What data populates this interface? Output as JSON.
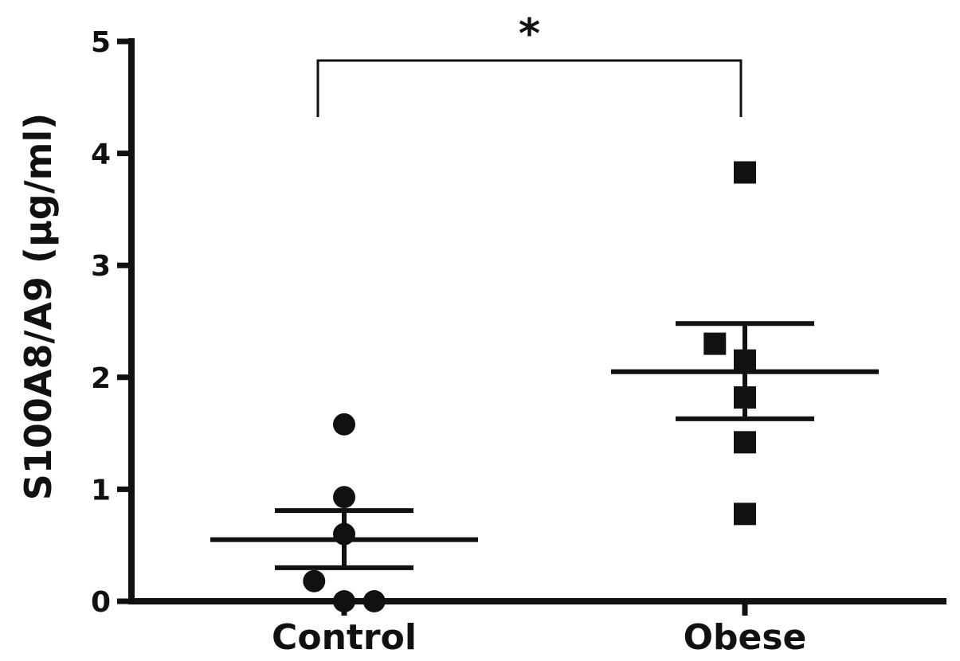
{
  "chart_data": {
    "type": "scatter",
    "title": "",
    "xlabel": "",
    "ylabel": "S100A8/A9 (µg/ml)",
    "ylim": [
      0,
      5
    ],
    "yticks": [
      0,
      1,
      2,
      3,
      4,
      5
    ],
    "ytick_labels": [
      "0",
      "1",
      "2",
      "3",
      "4",
      "5"
    ],
    "categories": [
      "Control",
      "Obese"
    ],
    "grid": false,
    "legend": "none",
    "series": [
      {
        "category": "Control",
        "marker": "circle",
        "color": "#111111",
        "points": [
          {
            "offset": 0.0,
            "value": 1.58
          },
          {
            "offset": 0.0,
            "value": 0.93
          },
          {
            "offset": 0.0,
            "value": 0.6
          },
          {
            "offset": -0.075,
            "value": 0.18
          },
          {
            "offset": 0.0,
            "value": 0.0
          },
          {
            "offset": 0.075,
            "value": 0.0
          }
        ],
        "mean": 0.55,
        "sem_low": 0.3,
        "sem_high": 0.81
      },
      {
        "category": "Obese",
        "marker": "square",
        "color": "#111111",
        "points": [
          {
            "offset": 0.0,
            "value": 3.83
          },
          {
            "offset": -0.075,
            "value": 2.3
          },
          {
            "offset": 0.0,
            "value": 2.15
          },
          {
            "offset": 0.0,
            "value": 1.82
          },
          {
            "offset": 0.0,
            "value": 1.42
          },
          {
            "offset": 0.0,
            "value": 0.78
          }
        ],
        "mean": 2.05,
        "sem_low": 1.63,
        "sem_high": 2.48
      }
    ],
    "significance": {
      "label": "*",
      "from": "Control",
      "to": "Obese"
    }
  }
}
